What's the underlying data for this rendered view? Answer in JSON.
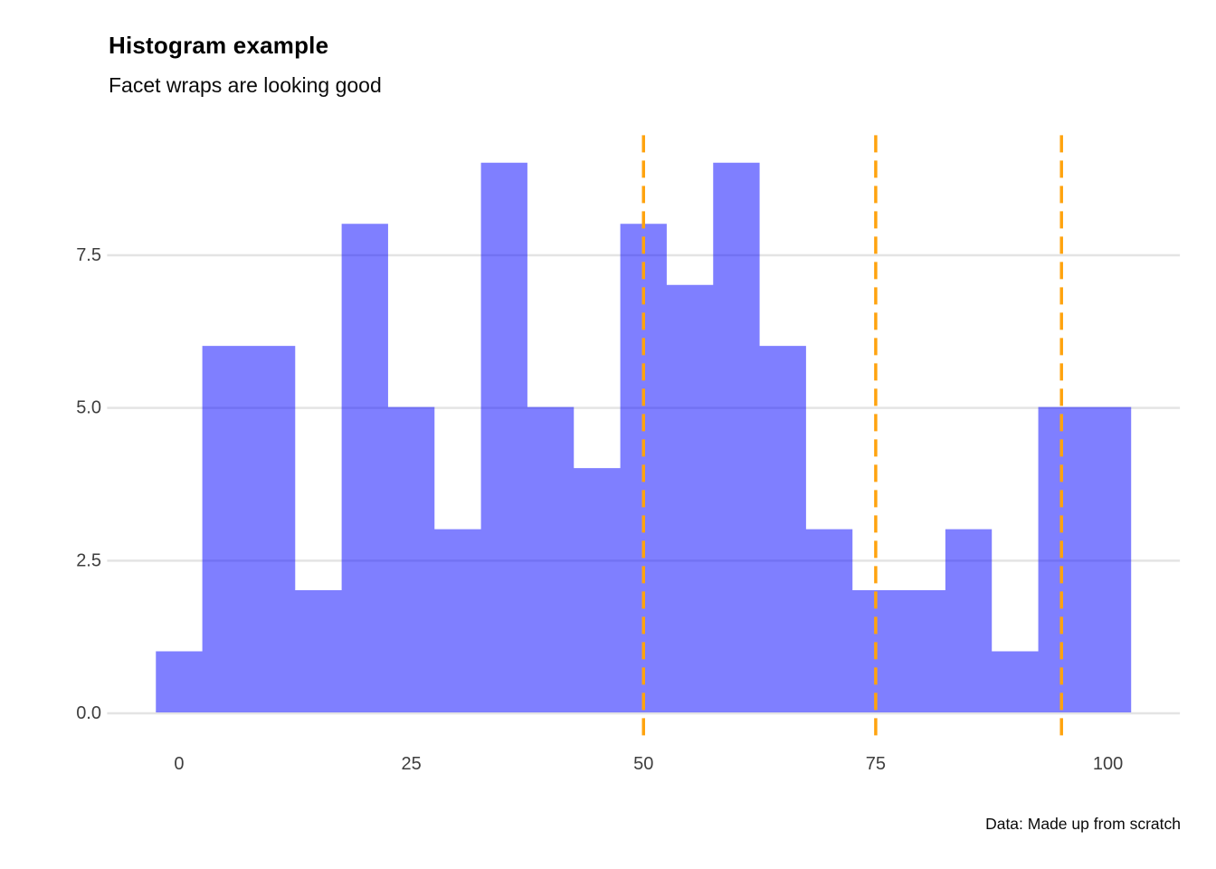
{
  "header": {
    "title": "Histogram example",
    "subtitle": "Facet wraps are looking good"
  },
  "footer": {
    "caption": "Data: Made up from scratch"
  },
  "axes": {
    "x": {
      "tick_labels": [
        "0",
        "25",
        "50",
        "75",
        "100"
      ],
      "tick_values": [
        0,
        25,
        50,
        75,
        100
      ]
    },
    "y": {
      "tick_labels": [
        "0.0",
        "2.5",
        "5.0",
        "7.5"
      ],
      "tick_values": [
        0,
        2.5,
        5,
        7.5
      ]
    }
  },
  "colors": {
    "bar_fill": "rgba(0,0,255,0.5)",
    "reference_line": "#FFA30F",
    "gridline": "#E4E4E4",
    "tick_text": "#3E3E3E",
    "title_text": "#000000"
  },
  "chart_data": {
    "type": "bar",
    "subtype": "histogram",
    "title": "Histogram example",
    "subtitle": "Facet wraps are looking good",
    "caption": "Data: Made up from scratch",
    "xlabel": "",
    "ylabel": "",
    "bin_centers": [
      0,
      5,
      10,
      15,
      20,
      25,
      30,
      35,
      40,
      45,
      50,
      55,
      60,
      65,
      70,
      75,
      80,
      85,
      90,
      95,
      100
    ],
    "binwidth": 5,
    "counts": [
      1,
      6,
      6,
      2,
      8,
      5,
      3,
      9,
      5,
      4,
      8,
      7,
      9,
      6,
      3,
      2,
      2,
      3,
      1,
      5,
      5
    ],
    "total_n": 100,
    "reference_lines_x": [
      50,
      75,
      95
    ],
    "x_ticks": [
      0,
      25,
      50,
      75,
      100
    ],
    "y_ticks": [
      0,
      2.5,
      5,
      7.5
    ],
    "xlim": [
      -7.75,
      107.75
    ],
    "ylim": [
      -0.45,
      9.45
    ],
    "grid": "horizontal-major-only",
    "legend": "none",
    "bar_style": "contiguous, no outline, semi-transparent blue",
    "reference_line_style": "vertical dashed orange"
  }
}
